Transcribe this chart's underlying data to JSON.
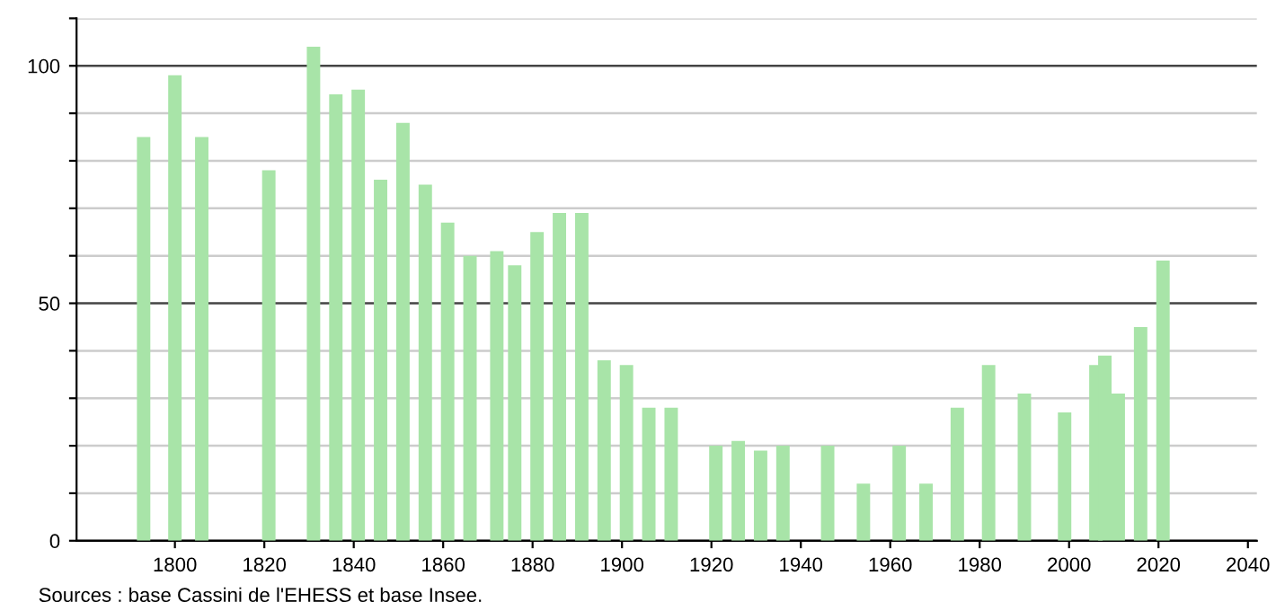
{
  "chart_data": {
    "type": "bar",
    "x": [
      1793,
      1800,
      1806,
      1821,
      1831,
      1836,
      1841,
      1846,
      1851,
      1856,
      1861,
      1866,
      1872,
      1876,
      1881,
      1886,
      1891,
      1896,
      1901,
      1906,
      1911,
      1921,
      1926,
      1931,
      1936,
      1946,
      1954,
      1962,
      1968,
      1975,
      1982,
      1990,
      1999,
      2006,
      2008,
      2011,
      2016,
      2021
    ],
    "values": [
      85,
      98,
      85,
      78,
      104,
      94,
      95,
      76,
      88,
      75,
      67,
      60,
      61,
      58,
      65,
      69,
      69,
      38,
      37,
      28,
      28,
      20,
      21,
      19,
      20,
      20,
      12,
      20,
      12,
      28,
      37,
      31,
      27,
      37,
      39,
      31,
      45,
      59
    ],
    "color": "#a8e4a8",
    "xlim": [
      1778,
      2042
    ],
    "xticks": [
      1800,
      1820,
      1840,
      1860,
      1880,
      1900,
      1920,
      1940,
      1960,
      1980,
      2000,
      2020,
      2040
    ],
    "ylim": [
      0,
      110
    ],
    "yticks": [
      0,
      {
        "value": 10,
        "label": null
      },
      {
        "value": 20,
        "label": null
      },
      {
        "value": 30,
        "label": null
      },
      {
        "value": 40,
        "label": null
      },
      50,
      {
        "value": 60,
        "label": null
      },
      {
        "value": 70,
        "label": null
      },
      {
        "value": 80,
        "label": null
      },
      {
        "value": 90,
        "label": null
      },
      100,
      {
        "value": 110,
        "label": null
      }
    ],
    "grid": "y",
    "annotations": [
      "Sources : base Cassini de l'EHESS et base Insee."
    ]
  }
}
